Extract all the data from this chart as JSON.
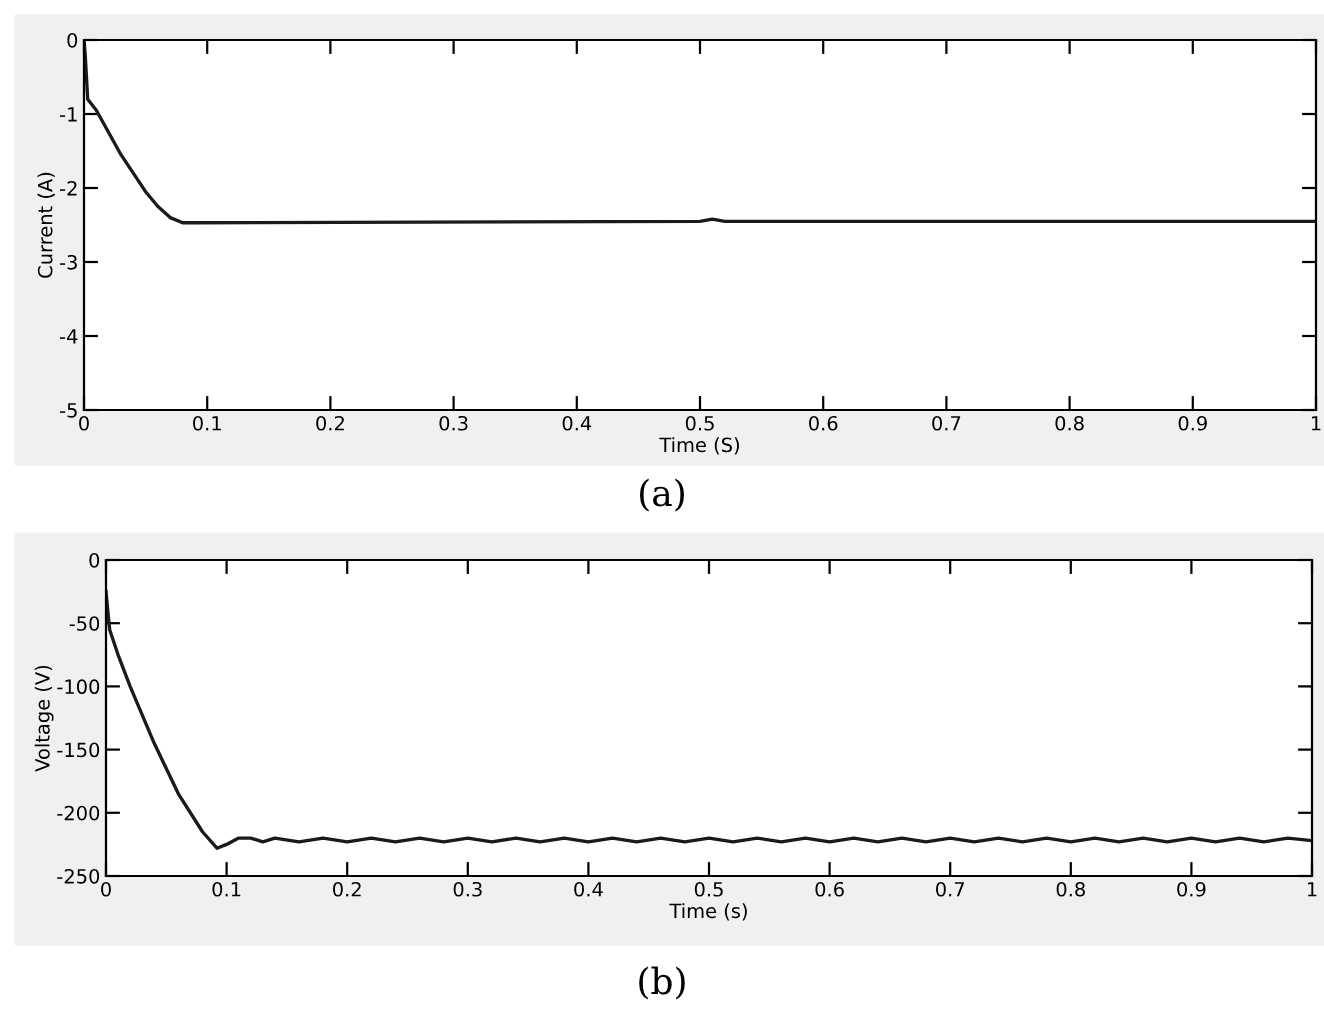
{
  "chart_data": [
    {
      "type": "line",
      "xlabel": "Time (S)",
      "ylabel": "Current (A)",
      "annotations": [
        "(a)"
      ],
      "color": "#1a1a1a",
      "grid": false,
      "marker": "none",
      "line_style": "solid",
      "x": [
        0,
        0.001,
        0.003,
        0.01,
        0.02,
        0.03,
        0.04,
        0.05,
        0.06,
        0.07,
        0.08,
        0.09,
        0.5,
        0.51,
        0.52,
        1.0
      ],
      "values": [
        0,
        -0.2,
        -0.8,
        -0.95,
        -1.25,
        -1.55,
        -1.8,
        -2.05,
        -2.25,
        -2.4,
        -2.47,
        -2.47,
        -2.45,
        -2.42,
        -2.45,
        -2.45
      ],
      "xlim": [
        0,
        1
      ],
      "ylim": [
        -5,
        0
      ],
      "xticks": [
        0,
        0.1,
        0.2,
        0.3,
        0.4,
        0.5,
        0.6,
        0.7,
        0.8,
        0.9,
        1
      ],
      "yticks": [
        -5,
        -4,
        -3,
        -2,
        -1,
        0
      ]
    },
    {
      "type": "line",
      "xlabel": "Time (s)",
      "ylabel": "Voltage (V)",
      "annotations": [
        "(b)"
      ],
      "color": "#1a1a1a",
      "grid": false,
      "marker": "none",
      "line_style": "solid",
      "x": [
        0,
        0.003,
        0.01,
        0.02,
        0.04,
        0.06,
        0.08,
        0.092,
        0.1,
        0.11,
        0.12,
        0.13,
        0.14,
        0.16,
        0.18,
        0.2,
        0.22,
        0.24,
        0.26,
        0.28,
        0.3,
        0.32,
        0.34,
        0.36,
        0.38,
        0.4,
        0.42,
        0.44,
        0.46,
        0.48,
        0.5,
        0.52,
        0.54,
        0.56,
        0.58,
        0.6,
        0.62,
        0.64,
        0.66,
        0.68,
        0.7,
        0.72,
        0.74,
        0.76,
        0.78,
        0.8,
        0.82,
        0.84,
        0.86,
        0.88,
        0.9,
        0.92,
        0.94,
        0.96,
        0.98,
        1.0
      ],
      "values": [
        -25,
        -55,
        -75,
        -100,
        -145,
        -185,
        -215,
        -228,
        -225,
        -220,
        -220,
        -223,
        -220,
        -223,
        -220,
        -223,
        -220,
        -223,
        -220,
        -223,
        -220,
        -223,
        -220,
        -223,
        -220,
        -223,
        -220,
        -223,
        -220,
        -223,
        -220,
        -223,
        -220,
        -223,
        -220,
        -223,
        -220,
        -223,
        -220,
        -223,
        -220,
        -223,
        -220,
        -223,
        -220,
        -223,
        -220,
        -223,
        -220,
        -223,
        -220,
        -223,
        -220,
        -223,
        -220,
        -222
      ],
      "xlim": [
        0,
        1
      ],
      "ylim": [
        -250,
        0
      ],
      "xticks": [
        0,
        0.1,
        0.2,
        0.3,
        0.4,
        0.5,
        0.6,
        0.7,
        0.8,
        0.9,
        1
      ],
      "yticks": [
        -250,
        -200,
        -150,
        -100,
        -50,
        0
      ]
    }
  ]
}
